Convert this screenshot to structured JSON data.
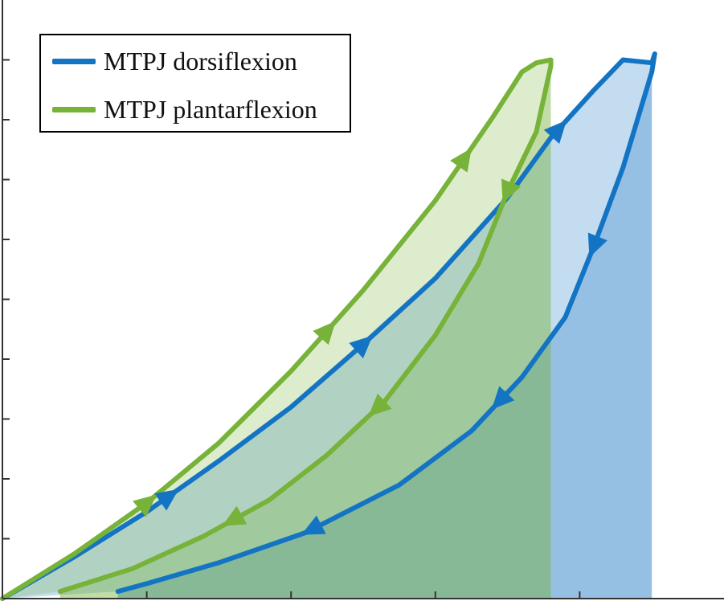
{
  "chart_data": {
    "type": "area",
    "title": "",
    "xlabel": "",
    "ylabel": "",
    "xlim": [
      0,
      1
    ],
    "ylim": [
      0,
      1
    ],
    "grid": false,
    "legend_placement": "top-left",
    "series": [
      {
        "name": "MTPJ dorsiflexion",
        "color": "#1474c4",
        "loading": {
          "x": [
            0.0,
            0.1,
            0.2,
            0.3,
            0.4,
            0.5,
            0.6,
            0.7,
            0.76,
            0.82,
            0.86,
            0.9,
            0.904
          ],
          "y": [
            0.0,
            0.07,
            0.145,
            0.23,
            0.32,
            0.425,
            0.535,
            0.67,
            0.77,
            0.85,
            0.9,
            0.895,
            0.91
          ]
        },
        "unloading": {
          "x": [
            0.9,
            0.86,
            0.82,
            0.78,
            0.72,
            0.65,
            0.55,
            0.42,
            0.3,
            0.2,
            0.16
          ],
          "y": [
            0.88,
            0.72,
            0.59,
            0.47,
            0.37,
            0.28,
            0.19,
            0.11,
            0.06,
            0.025,
            0.012
          ]
        },
        "shaded_until_x": 0.9,
        "loading_arrows": [
          0.23,
          0.5,
          0.77
        ],
        "unloading_arrows": [
          0.82,
          0.69,
          0.43
        ]
      },
      {
        "name": "MTPJ plantarflexion",
        "color": "#77b239",
        "loading": {
          "x": [
            0.0,
            0.1,
            0.2,
            0.3,
            0.4,
            0.5,
            0.6,
            0.68,
            0.72,
            0.74,
            0.76
          ],
          "y": [
            0.0,
            0.075,
            0.16,
            0.26,
            0.38,
            0.515,
            0.665,
            0.805,
            0.88,
            0.895,
            0.9
          ]
        },
        "unloading": {
          "x": [
            0.76,
            0.74,
            0.7,
            0.66,
            0.6,
            0.53,
            0.45,
            0.37,
            0.28,
            0.18,
            0.08
          ],
          "y": [
            0.89,
            0.78,
            0.68,
            0.56,
            0.44,
            0.33,
            0.24,
            0.165,
            0.105,
            0.05,
            0.012
          ]
        },
        "shaded_until_x": 0.76,
        "loading_arrows": [
          0.2,
          0.45,
          0.64
        ],
        "unloading_arrows": [
          0.7,
          0.52,
          0.32
        ]
      }
    ],
    "x_ticks": [
      0.2,
      0.4,
      0.6,
      0.8
    ],
    "y_ticks": [
      0.1,
      0.2,
      0.3,
      0.4,
      0.5,
      0.6,
      0.7,
      0.8,
      0.9
    ]
  }
}
